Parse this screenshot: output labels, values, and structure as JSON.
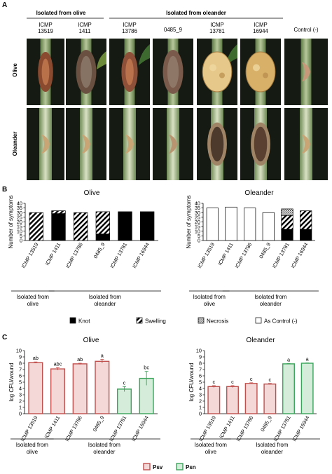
{
  "panel_a": {
    "letter": "A",
    "group_headers": [
      "Isolated from olive",
      "Isolated from oleander"
    ],
    "columns": [
      "ICMP\n13519",
      "ICMP\n1411",
      "ICMP\n13786",
      "0485_9",
      "ICMP\n13781",
      "ICMP\n16944",
      "Control (-)"
    ],
    "rows": [
      "Olive",
      "Oleander"
    ]
  },
  "panel_b": {
    "letter": "B",
    "legend": [
      {
        "label": "Knot",
        "pattern": "solid-black"
      },
      {
        "label": "Swelling",
        "pattern": "diagonal-stripes"
      },
      {
        "label": "Necrosis",
        "pattern": "dots"
      },
      {
        "label": "As Control (-)",
        "pattern": "white"
      }
    ]
  },
  "panel_c": {
    "letter": "C",
    "legend": [
      {
        "label": "Psv",
        "color": "#c0504d",
        "fill": "#f4d8d8"
      },
      {
        "label": "Psn",
        "color": "#3aa45a",
        "fill": "#d4ecd9"
      }
    ]
  },
  "chart_data": [
    {
      "type": "bar",
      "stacked": true,
      "title": "Olive",
      "ylabel": "Number of symptoms",
      "ylim": [
        0,
        40
      ],
      "yticks": [
        0,
        5,
        10,
        15,
        20,
        25,
        30,
        35,
        40
      ],
      "categories": [
        "ICMP 13519",
        "ICMP 1411",
        "ICMP 13786",
        "0485_9",
        "ICMP 13781",
        "ICMP 16944"
      ],
      "group_labels": [
        "Isolated from\nolive",
        "Isolated from\noleander"
      ],
      "series": [
        {
          "name": "Knot",
          "values": [
            0,
            29,
            0,
            7,
            31,
            31
          ]
        },
        {
          "name": "Swelling",
          "values": [
            30,
            3,
            30,
            24,
            0,
            0
          ]
        },
        {
          "name": "Necrosis",
          "values": [
            0,
            0,
            0,
            0,
            0,
            0
          ]
        },
        {
          "name": "As Control (-)",
          "values": [
            0,
            0,
            0,
            0,
            0,
            0
          ]
        }
      ]
    },
    {
      "type": "bar",
      "stacked": true,
      "title": "Oleander",
      "ylabel": "Number of symptoms",
      "ylim": [
        0,
        40
      ],
      "yticks": [
        0,
        5,
        10,
        15,
        20,
        25,
        30,
        35,
        40
      ],
      "categories": [
        "ICMP 13519",
        "ICMP 1411",
        "ICMP 13786",
        "0485_9",
        "ICMP 13781",
        "ICMP 16944"
      ],
      "group_labels": [
        "Isolated from\nolive",
        "Isolated from\noleander"
      ],
      "series": [
        {
          "name": "Knot",
          "values": [
            0,
            0,
            0,
            0,
            12,
            12
          ]
        },
        {
          "name": "Swelling",
          "values": [
            0,
            0,
            0,
            0,
            15,
            20
          ]
        },
        {
          "name": "Necrosis",
          "values": [
            0,
            0,
            0,
            0,
            7,
            0
          ]
        },
        {
          "name": "As Control (-)",
          "values": [
            35,
            36,
            35,
            30,
            0,
            0
          ]
        }
      ]
    },
    {
      "type": "bar",
      "title": "Olive",
      "ylabel": "log CFU/wound",
      "ylim": [
        0,
        10
      ],
      "yticks": [
        0,
        1,
        2,
        3,
        4,
        5,
        6,
        7,
        8,
        9,
        10
      ],
      "categories": [
        "ICMP 13519",
        "ICMP 1411",
        "ICMP 13786",
        "0485_9",
        "ICMP 13781",
        "ICMP 16944"
      ],
      "group_labels": [
        "Isolated from\nolive",
        "Isolated from\noleander"
      ],
      "values": [
        8.1,
        7.1,
        7.9,
        8.3,
        3.9,
        5.6
      ],
      "errors": [
        0.1,
        0.2,
        0.1,
        0.3,
        0.4,
        1.1
      ],
      "series_of": [
        "Psv",
        "Psv",
        "Psv",
        "Psv",
        "Psn",
        "Psn"
      ],
      "letters": [
        "ab",
        "abc",
        "ab",
        "a",
        "c",
        "bc"
      ]
    },
    {
      "type": "bar",
      "title": "Oleander",
      "ylabel": "log CFU/wound",
      "ylim": [
        0,
        10
      ],
      "yticks": [
        0,
        1,
        2,
        3,
        4,
        5,
        6,
        7,
        8,
        9,
        10
      ],
      "categories": [
        "ICMP 13519",
        "ICMP 1411",
        "ICMP 13786",
        "0485_9",
        "ICMP 13781",
        "ICMP 16944"
      ],
      "group_labels": [
        "Isolated from\nolive",
        "Isolated from\noleander"
      ],
      "values": [
        4.3,
        4.3,
        4.8,
        4.7,
        7.9,
        8.0
      ],
      "errors": [
        0.15,
        0.15,
        0.1,
        0.1,
        0.05,
        0.05
      ],
      "series_of": [
        "Psv",
        "Psv",
        "Psv",
        "Psv",
        "Psn",
        "Psn"
      ],
      "letters": [
        "c",
        "c",
        "c",
        "c",
        "a",
        "a"
      ]
    }
  ]
}
